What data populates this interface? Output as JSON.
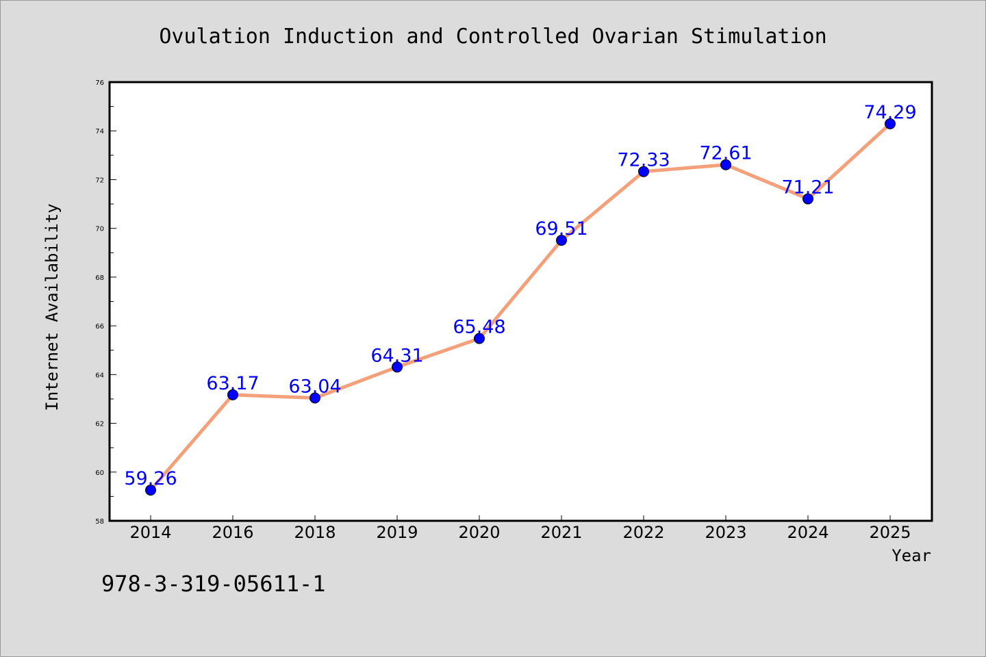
{
  "chart_data": {
    "type": "line",
    "title": "Ovulation Induction and Controlled Ovarian Stimulation",
    "xlabel": "Year",
    "ylabel": "Internet Availability",
    "categories": [
      "2014",
      "2016",
      "2018",
      "2019",
      "2020",
      "2021",
      "2022",
      "2023",
      "2024",
      "2025"
    ],
    "series": [
      {
        "values": [
          59.26,
          63.17,
          63.04,
          64.31,
          65.48,
          69.51,
          72.33,
          72.61,
          71.21,
          74.29
        ],
        "line_color": "#f4a07a",
        "marker_color": "#0000ff",
        "label_color": "#0000ff"
      }
    ],
    "ylim": [
      58,
      76
    ],
    "yticks": [
      58,
      60,
      62,
      64,
      66,
      68,
      70,
      72,
      74,
      76
    ],
    "grid": false,
    "legend": "none",
    "plot_background": "#ffffff",
    "page_background": "#dcdcdc"
  },
  "footnote": "978-3-319-05611-1"
}
